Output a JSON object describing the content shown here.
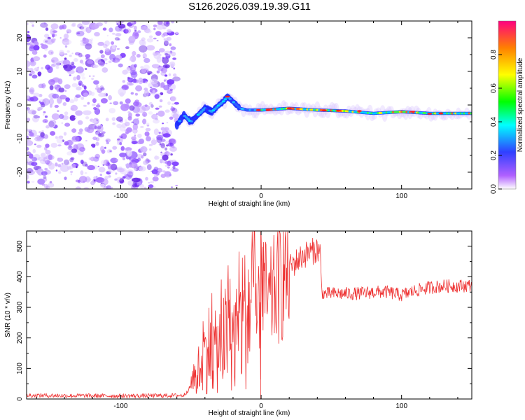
{
  "title": "S126.2026.039.19.39.G11",
  "chart_data": [
    {
      "type": "heatmap",
      "xlabel": "Height of straight line (km)",
      "ylabel": "Frequency (Hz)",
      "xlim": [
        -167,
        150
      ],
      "ylim": [
        -25,
        25
      ],
      "xticks": [
        -100,
        0,
        100
      ],
      "yticks": [
        -20,
        -10,
        0,
        10,
        20
      ],
      "colorbar": {
        "label": "Normalized spectral amplitude",
        "range": [
          0,
          1
        ],
        "ticks": [
          0.0,
          0.2,
          0.4,
          0.6,
          0.8
        ]
      },
      "signal_ridge": [
        {
          "x": -60,
          "f": -6
        },
        {
          "x": -55,
          "f": -3
        },
        {
          "x": -50,
          "f": -5
        },
        {
          "x": -45,
          "f": -3
        },
        {
          "x": -40,
          "f": -1
        },
        {
          "x": -35,
          "f": -2
        },
        {
          "x": -30,
          "f": 0
        },
        {
          "x": -27,
          "f": 1
        },
        {
          "x": -24,
          "f": 2.5
        },
        {
          "x": -20,
          "f": 1
        },
        {
          "x": -15,
          "f": -1
        },
        {
          "x": -10,
          "f": -1.5
        },
        {
          "x": 0,
          "f": -1.5
        },
        {
          "x": 20,
          "f": -1
        },
        {
          "x": 40,
          "f": -1.5
        },
        {
          "x": 60,
          "f": -1.8
        },
        {
          "x": 80,
          "f": -2.5
        },
        {
          "x": 100,
          "f": -2
        },
        {
          "x": 120,
          "f": -2.5
        },
        {
          "x": 150,
          "f": -2.5
        }
      ]
    },
    {
      "type": "line",
      "xlabel": "Height of straight line (km)",
      "ylabel": "SNR (10 * v/v)",
      "xlim": [
        -167,
        150
      ],
      "ylim": [
        0,
        550
      ],
      "xticks": [
        -100,
        0,
        100
      ],
      "yticks": [
        0,
        100,
        200,
        300,
        400,
        500
      ],
      "series": [
        {
          "name": "SNR",
          "color": "#ee3333",
          "x": [
            -167,
            -140,
            -100,
            -70,
            -55,
            -47,
            -42,
            -37,
            -33,
            -28,
            -22,
            -18,
            -12,
            -8,
            -4,
            -1,
            0,
            5,
            10,
            15,
            20,
            25,
            30,
            35,
            40,
            42,
            43,
            44,
            50,
            60,
            70,
            80,
            90,
            95,
            100,
            110,
            120,
            130,
            140,
            150
          ],
          "y": [
            12,
            11,
            10,
            11,
            12,
            60,
            130,
            170,
            150,
            180,
            220,
            190,
            260,
            300,
            310,
            200,
            420,
            300,
            360,
            400,
            430,
            450,
            470,
            480,
            490,
            480,
            360,
            345,
            345,
            345,
            345,
            350,
            350,
            345,
            340,
            355,
            365,
            370,
            370,
            372
          ]
        }
      ]
    }
  ]
}
